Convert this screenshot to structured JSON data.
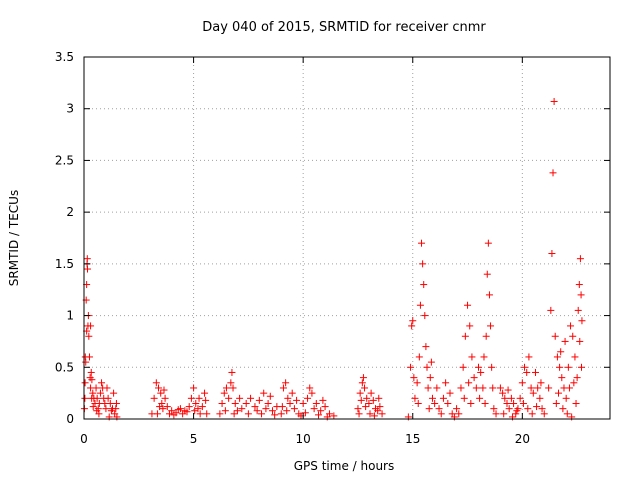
{
  "chart_data": {
    "type": "scatter",
    "title": "Day 040 of 2015, SRMTID for receiver cnmr",
    "xlabel": "GPS time / hours",
    "ylabel": "SRMTID / TECUs",
    "xlim": [
      0,
      24
    ],
    "ylim": [
      0,
      3.5
    ],
    "xticks": [
      0,
      5,
      10,
      15,
      20
    ],
    "xtick_labels": [
      "0",
      "5",
      "10",
      "15",
      "20"
    ],
    "yticks": [
      0,
      0.5,
      1,
      1.5,
      2,
      2.5,
      3,
      3.5
    ],
    "ytick_labels": [
      "0",
      "0.5",
      "1",
      "1.5",
      "2",
      "2.5",
      "3",
      "3.5"
    ],
    "grid": true,
    "marker": "+",
    "color": "#ff0000",
    "series": [
      {
        "name": "SRMTID",
        "points": [
          [
            0.05,
            0.35
          ],
          [
            0.08,
            0.55
          ],
          [
            0.1,
            1.15
          ],
          [
            0.12,
            1.3
          ],
          [
            0.14,
            1.5
          ],
          [
            0.15,
            1.55
          ],
          [
            0.16,
            1.45
          ],
          [
            0.18,
            0.9
          ],
          [
            0.2,
            1.0
          ],
          [
            0.22,
            0.8
          ],
          [
            0.25,
            0.6
          ],
          [
            0.28,
            0.4
          ],
          [
            0.3,
            0.3
          ],
          [
            0.33,
            0.45
          ],
          [
            0.36,
            0.38
          ],
          [
            0.4,
            0.25
          ],
          [
            0.45,
            0.2
          ],
          [
            0.5,
            0.15
          ],
          [
            0.55,
            0.3
          ],
          [
            0.6,
            0.2
          ],
          [
            0.65,
            0.1
          ],
          [
            0.7,
            0.15
          ],
          [
            0.75,
            0.25
          ],
          [
            0.8,
            0.35
          ],
          [
            0.85,
            0.3
          ],
          [
            0.9,
            0.2
          ],
          [
            0.95,
            0.15
          ],
          [
            1.0,
            0.1
          ],
          [
            1.05,
            0.3
          ],
          [
            1.1,
            0.2
          ],
          [
            1.2,
            0.15
          ],
          [
            1.3,
            0.1
          ],
          [
            1.35,
            0.25
          ],
          [
            1.4,
            0.05
          ],
          [
            1.45,
            0.1
          ],
          [
            1.5,
            0.02
          ],
          [
            0.02,
            0.1
          ],
          [
            0.04,
            0.2
          ],
          [
            0.06,
            0.6
          ],
          [
            0.12,
            0.85
          ],
          [
            0.3,
            0.9
          ],
          [
            0.35,
            0.2
          ],
          [
            0.42,
            0.12
          ],
          [
            0.58,
            0.08
          ],
          [
            0.68,
            0.05
          ],
          [
            1.15,
            0.02
          ],
          [
            1.25,
            0.08
          ],
          [
            1.48,
            0.15
          ],
          [
            3.1,
            0.05
          ],
          [
            3.2,
            0.2
          ],
          [
            3.3,
            0.35
          ],
          [
            3.4,
            0.3
          ],
          [
            3.5,
            0.25
          ],
          [
            3.55,
            0.15
          ],
          [
            3.6,
            0.1
          ],
          [
            3.7,
            0.2
          ],
          [
            3.8,
            0.12
          ],
          [
            3.9,
            0.05
          ],
          [
            4.0,
            0.08
          ],
          [
            4.2,
            0.06
          ],
          [
            4.4,
            0.1
          ],
          [
            4.6,
            0.08
          ],
          [
            4.8,
            0.12
          ],
          [
            4.9,
            0.2
          ],
          [
            5.0,
            0.3
          ],
          [
            5.1,
            0.15
          ],
          [
            5.2,
            0.1
          ],
          [
            5.3,
            0.05
          ],
          [
            5.4,
            0.12
          ],
          [
            5.5,
            0.25
          ],
          [
            5.55,
            0.18
          ],
          [
            5.6,
            0.05
          ],
          [
            3.35,
            0.05
          ],
          [
            3.45,
            0.12
          ],
          [
            3.65,
            0.28
          ],
          [
            4.1,
            0.04
          ],
          [
            4.3,
            0.09
          ],
          [
            4.5,
            0.05
          ],
          [
            4.7,
            0.07
          ],
          [
            5.05,
            0.08
          ],
          [
            5.25,
            0.2
          ],
          [
            6.2,
            0.05
          ],
          [
            6.3,
            0.15
          ],
          [
            6.4,
            0.25
          ],
          [
            6.5,
            0.3
          ],
          [
            6.6,
            0.2
          ],
          [
            6.7,
            0.35
          ],
          [
            6.75,
            0.45
          ],
          [
            6.8,
            0.3
          ],
          [
            6.9,
            0.15
          ],
          [
            7.0,
            0.08
          ],
          [
            7.2,
            0.1
          ],
          [
            7.4,
            0.15
          ],
          [
            7.6,
            0.2
          ],
          [
            7.8,
            0.12
          ],
          [
            8.0,
            0.18
          ],
          [
            8.2,
            0.25
          ],
          [
            8.4,
            0.15
          ],
          [
            8.6,
            0.08
          ],
          [
            8.8,
            0.12
          ],
          [
            6.45,
            0.08
          ],
          [
            6.85,
            0.05
          ],
          [
            7.1,
            0.2
          ],
          [
            7.5,
            0.05
          ],
          [
            7.9,
            0.08
          ],
          [
            8.1,
            0.05
          ],
          [
            8.3,
            0.1
          ],
          [
            8.5,
            0.22
          ],
          [
            8.7,
            0.04
          ],
          [
            9.0,
            0.05
          ],
          [
            9.1,
            0.3
          ],
          [
            9.2,
            0.35
          ],
          [
            9.3,
            0.2
          ],
          [
            9.4,
            0.15
          ],
          [
            9.5,
            0.25
          ],
          [
            9.6,
            0.1
          ],
          [
            9.8,
            0.05
          ],
          [
            10.0,
            0.15
          ],
          [
            10.2,
            0.2
          ],
          [
            10.3,
            0.3
          ],
          [
            10.4,
            0.25
          ],
          [
            10.5,
            0.1
          ],
          [
            10.6,
            0.15
          ],
          [
            10.8,
            0.08
          ],
          [
            11.0,
            0.12
          ],
          [
            11.2,
            0.05
          ],
          [
            11.4,
            0.03
          ],
          [
            9.05,
            0.12
          ],
          [
            9.25,
            0.08
          ],
          [
            9.7,
            0.18
          ],
          [
            9.9,
            0.03
          ],
          [
            10.1,
            0.06
          ],
          [
            10.7,
            0.04
          ],
          [
            10.9,
            0.18
          ],
          [
            11.1,
            0.02
          ],
          [
            12.5,
            0.1
          ],
          [
            12.6,
            0.25
          ],
          [
            12.7,
            0.35
          ],
          [
            12.75,
            0.4
          ],
          [
            12.8,
            0.3
          ],
          [
            12.9,
            0.2
          ],
          [
            13.0,
            0.15
          ],
          [
            13.1,
            0.25
          ],
          [
            13.2,
            0.18
          ],
          [
            13.3,
            0.1
          ],
          [
            13.4,
            0.08
          ],
          [
            13.5,
            0.12
          ],
          [
            13.6,
            0.05
          ],
          [
            12.55,
            0.05
          ],
          [
            12.65,
            0.18
          ],
          [
            12.85,
            0.12
          ],
          [
            13.05,
            0.05
          ],
          [
            13.25,
            0.03
          ],
          [
            13.45,
            0.2
          ],
          [
            14.8,
            0.02
          ],
          [
            14.9,
            0.5
          ],
          [
            14.95,
            0.9
          ],
          [
            15.0,
            0.95
          ],
          [
            15.05,
            0.4
          ],
          [
            15.1,
            0.2
          ],
          [
            15.2,
            0.35
          ],
          [
            15.3,
            0.6
          ],
          [
            15.35,
            1.1
          ],
          [
            15.4,
            1.7
          ],
          [
            15.45,
            1.5
          ],
          [
            15.5,
            1.3
          ],
          [
            15.55,
            1.0
          ],
          [
            15.6,
            0.7
          ],
          [
            15.65,
            0.5
          ],
          [
            15.7,
            0.3
          ],
          [
            15.8,
            0.4
          ],
          [
            15.9,
            0.2
          ],
          [
            16.0,
            0.15
          ],
          [
            16.2,
            0.1
          ],
          [
            16.4,
            0.2
          ],
          [
            16.5,
            0.35
          ],
          [
            16.6,
            0.15
          ],
          [
            16.8,
            0.05
          ],
          [
            17.0,
            0.1
          ],
          [
            17.2,
            0.3
          ],
          [
            17.3,
            0.5
          ],
          [
            17.4,
            0.8
          ],
          [
            17.5,
            1.1
          ],
          [
            17.6,
            0.9
          ],
          [
            17.7,
            0.6
          ],
          [
            17.8,
            0.4
          ],
          [
            17.9,
            0.3
          ],
          [
            18.0,
            0.5
          ],
          [
            18.1,
            0.45
          ],
          [
            18.2,
            0.3
          ],
          [
            18.3,
            0.15
          ],
          [
            18.35,
            0.8
          ],
          [
            18.4,
            1.4
          ],
          [
            18.45,
            1.7
          ],
          [
            18.5,
            1.2
          ],
          [
            18.55,
            0.9
          ],
          [
            18.6,
            0.5
          ],
          [
            18.7,
            0.1
          ],
          [
            18.8,
            0.05
          ],
          [
            15.25,
            0.15
          ],
          [
            15.75,
            0.1
          ],
          [
            15.85,
            0.55
          ],
          [
            16.1,
            0.3
          ],
          [
            16.3,
            0.05
          ],
          [
            16.7,
            0.25
          ],
          [
            16.9,
            0.02
          ],
          [
            17.1,
            0.05
          ],
          [
            17.35,
            0.2
          ],
          [
            17.55,
            0.35
          ],
          [
            17.65,
            0.15
          ],
          [
            18.05,
            0.2
          ],
          [
            18.25,
            0.6
          ],
          [
            18.65,
            0.3
          ],
          [
            19.0,
            0.3
          ],
          [
            19.1,
            0.25
          ],
          [
            19.2,
            0.2
          ],
          [
            19.3,
            0.15
          ],
          [
            19.4,
            0.1
          ],
          [
            19.5,
            0.2
          ],
          [
            19.6,
            0.15
          ],
          [
            19.7,
            0.05
          ],
          [
            19.8,
            0.1
          ],
          [
            19.9,
            0.2
          ],
          [
            20.0,
            0.35
          ],
          [
            20.1,
            0.5
          ],
          [
            20.2,
            0.45
          ],
          [
            20.3,
            0.6
          ],
          [
            20.4,
            0.3
          ],
          [
            20.5,
            0.25
          ],
          [
            20.6,
            0.45
          ],
          [
            20.7,
            0.3
          ],
          [
            20.8,
            0.2
          ],
          [
            20.9,
            0.1
          ],
          [
            21.0,
            0.05
          ],
          [
            21.2,
            0.3
          ],
          [
            21.3,
            1.05
          ],
          [
            21.35,
            1.6
          ],
          [
            21.4,
            2.38
          ],
          [
            21.45,
            3.07
          ],
          [
            21.5,
            0.8
          ],
          [
            21.6,
            0.6
          ],
          [
            21.7,
            0.5
          ],
          [
            21.8,
            0.4
          ],
          [
            21.9,
            0.3
          ],
          [
            22.0,
            0.2
          ],
          [
            22.1,
            0.5
          ],
          [
            22.2,
            0.9
          ],
          [
            22.3,
            0.8
          ],
          [
            22.4,
            0.6
          ],
          [
            22.5,
            0.4
          ],
          [
            22.6,
            1.3
          ],
          [
            22.65,
            1.55
          ],
          [
            22.7,
            0.5
          ],
          [
            19.15,
            0.05
          ],
          [
            19.35,
            0.28
          ],
          [
            19.55,
            0.02
          ],
          [
            19.75,
            0.08
          ],
          [
            20.05,
            0.15
          ],
          [
            20.25,
            0.1
          ],
          [
            20.45,
            0.05
          ],
          [
            20.65,
            0.12
          ],
          [
            20.85,
            0.35
          ],
          [
            21.55,
            0.15
          ],
          [
            21.65,
            0.25
          ],
          [
            21.75,
            0.65
          ],
          [
            21.85,
            0.1
          ],
          [
            21.95,
            0.75
          ],
          [
            22.05,
            0.05
          ],
          [
            22.15,
            0.3
          ],
          [
            22.25,
            0.02
          ],
          [
            22.35,
            0.35
          ],
          [
            22.45,
            0.15
          ],
          [
            22.55,
            1.05
          ],
          [
            22.62,
            0.75
          ],
          [
            22.68,
            1.2
          ],
          [
            22.72,
            0.95
          ]
        ]
      }
    ]
  }
}
